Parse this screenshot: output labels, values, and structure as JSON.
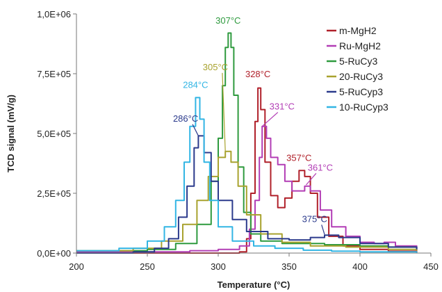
{
  "chart_data": {
    "type": "line",
    "xlabel": "Temperature (°C)",
    "ylabel": "TCD signal (mV/g)",
    "xlim": [
      200,
      450
    ],
    "ylim": [
      0,
      1000000
    ],
    "xticks": [
      "200",
      "250",
      "300",
      "350",
      "400",
      "450"
    ],
    "yticks": [
      "0,0E+00",
      "2,5E+05",
      "5,0E+05",
      "7,5E+05",
      "1,0E+06"
    ],
    "grid": false,
    "legend_position": "top-right",
    "series": [
      {
        "name": "m-MgH2",
        "color": "#b0202a",
        "points": [
          [
            200,
            0
          ],
          [
            300,
            0
          ],
          [
            315,
            5000
          ],
          [
            320,
            60000
          ],
          [
            323,
            250000
          ],
          [
            326,
            550000
          ],
          [
            328,
            690000
          ],
          [
            330,
            600000
          ],
          [
            333,
            380000
          ],
          [
            337,
            240000
          ],
          [
            342,
            190000
          ],
          [
            347,
            230000
          ],
          [
            352,
            300000
          ],
          [
            357,
            345000
          ],
          [
            361,
            320000
          ],
          [
            365,
            250000
          ],
          [
            370,
            150000
          ],
          [
            378,
            70000
          ],
          [
            388,
            30000
          ],
          [
            400,
            15000
          ],
          [
            420,
            8000
          ],
          [
            440,
            0
          ]
        ]
      },
      {
        "name": "Ru-MgH2",
        "color": "#b23db5",
        "points": [
          [
            200,
            5000
          ],
          [
            280,
            10000
          ],
          [
            300,
            15000
          ],
          [
            315,
            30000
          ],
          [
            322,
            100000
          ],
          [
            326,
            220000
          ],
          [
            329,
            400000
          ],
          [
            331,
            530000
          ],
          [
            334,
            480000
          ],
          [
            337,
            400000
          ],
          [
            342,
            370000
          ],
          [
            347,
            300000
          ],
          [
            352,
            260000
          ],
          [
            357,
            260000
          ],
          [
            361,
            280000
          ],
          [
            365,
            260000
          ],
          [
            372,
            180000
          ],
          [
            380,
            110000
          ],
          [
            390,
            70000
          ],
          [
            400,
            45000
          ],
          [
            410,
            40000
          ],
          [
            417,
            45000
          ],
          [
            425,
            30000
          ],
          [
            440,
            10000
          ]
        ]
      },
      {
        "name": "5-RuCy3",
        "color": "#2e9a3e",
        "points": [
          [
            200,
            10000
          ],
          [
            250,
            15000
          ],
          [
            270,
            40000
          ],
          [
            285,
            120000
          ],
          [
            295,
            300000
          ],
          [
            300,
            480000
          ],
          [
            303,
            700000
          ],
          [
            305,
            860000
          ],
          [
            307,
            920000
          ],
          [
            309,
            860000
          ],
          [
            311,
            660000
          ],
          [
            314,
            360000
          ],
          [
            318,
            170000
          ],
          [
            323,
            80000
          ],
          [
            330,
            50000
          ],
          [
            345,
            40000
          ],
          [
            375,
            35000
          ],
          [
            400,
            30000
          ],
          [
            420,
            25000
          ],
          [
            440,
            20000
          ]
        ]
      },
      {
        "name": "20-RuCy3",
        "color": "#a8a22e",
        "points": [
          [
            200,
            10000
          ],
          [
            240,
            20000
          ],
          [
            260,
            50000
          ],
          [
            275,
            120000
          ],
          [
            285,
            220000
          ],
          [
            293,
            320000
          ],
          [
            300,
            400000
          ],
          [
            305,
            425000
          ],
          [
            309,
            380000
          ],
          [
            314,
            280000
          ],
          [
            320,
            160000
          ],
          [
            330,
            80000
          ],
          [
            345,
            45000
          ],
          [
            365,
            30000
          ],
          [
            390,
            25000
          ],
          [
            420,
            15000
          ],
          [
            440,
            10000
          ]
        ]
      },
      {
        "name": "5-RuCyp3",
        "color": "#2b3a8c",
        "points": [
          [
            200,
            0
          ],
          [
            240,
            5000
          ],
          [
            255,
            20000
          ],
          [
            265,
            60000
          ],
          [
            272,
            150000
          ],
          [
            278,
            280000
          ],
          [
            283,
            440000
          ],
          [
            286,
            490000
          ],
          [
            290,
            420000
          ],
          [
            295,
            300000
          ],
          [
            300,
            220000
          ],
          [
            310,
            140000
          ],
          [
            320,
            90000
          ],
          [
            335,
            60000
          ],
          [
            350,
            55000
          ],
          [
            365,
            65000
          ],
          [
            375,
            75000
          ],
          [
            385,
            65000
          ],
          [
            400,
            40000
          ],
          [
            420,
            25000
          ],
          [
            440,
            15000
          ]
        ]
      },
      {
        "name": "10-RuCyp3",
        "color": "#32b5e4",
        "points": [
          [
            200,
            10000
          ],
          [
            230,
            20000
          ],
          [
            250,
            50000
          ],
          [
            262,
            110000
          ],
          [
            270,
            220000
          ],
          [
            276,
            380000
          ],
          [
            280,
            530000
          ],
          [
            284,
            650000
          ],
          [
            287,
            560000
          ],
          [
            290,
            380000
          ],
          [
            294,
            220000
          ],
          [
            300,
            110000
          ],
          [
            310,
            50000
          ],
          [
            325,
            30000
          ],
          [
            340,
            20000
          ],
          [
            360,
            12000
          ],
          [
            380,
            8000
          ],
          [
            400,
            5000
          ],
          [
            440,
            0
          ]
        ]
      }
    ],
    "annotations": [
      {
        "text": "307°C",
        "color": "#2e9a3e",
        "x": 307,
        "y": 960000,
        "arrow": false
      },
      {
        "text": "305°C",
        "color": "#a8a22e",
        "x": 298,
        "y": 765000,
        "arrow": true,
        "target": [
          305,
          425000
        ]
      },
      {
        "text": "328°C",
        "color": "#b0202a",
        "x": 328,
        "y": 735000,
        "arrow": false
      },
      {
        "text": "331°C",
        "color": "#b23db5",
        "x": 345,
        "y": 600000,
        "arrow": true,
        "target": [
          331,
          530000
        ]
      },
      {
        "text": "284°C",
        "color": "#32b5e4",
        "x": 284,
        "y": 690000,
        "arrow": false
      },
      {
        "text": "286°C",
        "color": "#2b3a8c",
        "x": 277,
        "y": 550000,
        "arrow": true,
        "target": [
          286,
          490000
        ]
      },
      {
        "text": "357°C",
        "color": "#b0202a",
        "x": 357,
        "y": 385000,
        "arrow": false
      },
      {
        "text": "361°C",
        "color": "#b23db5",
        "x": 372,
        "y": 345000,
        "arrow": true,
        "target": [
          362,
          285000
        ]
      },
      {
        "text": "375°C",
        "color": "#2b3a8c",
        "x": 368,
        "y": 130000,
        "arrow": true,
        "target": [
          375,
          78000
        ]
      }
    ]
  }
}
